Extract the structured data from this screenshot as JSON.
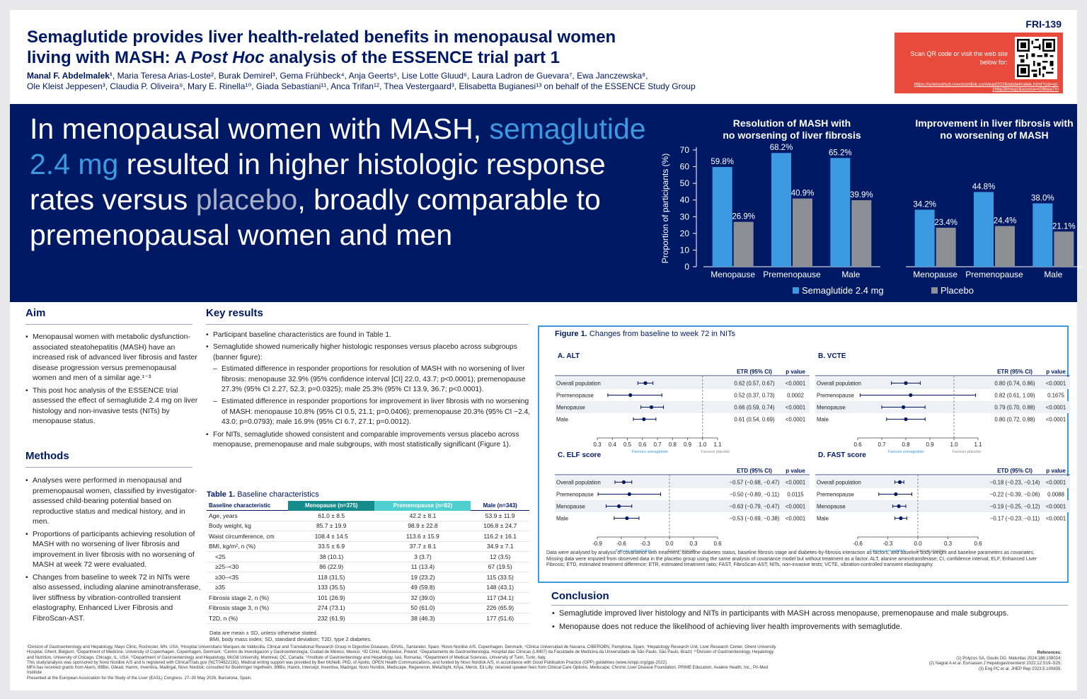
{
  "poster_id": "FRI-139",
  "title": {
    "line1": "Semaglutide provides liver health-related benefits in menopausal women",
    "line2_pre": "living with MASH: A ",
    "line2_italic": "Post Hoc",
    "line2_post": " analysis of the ESSENCE trial part 1"
  },
  "authors": {
    "line1_first": "Manal F. Abdelmalek¹",
    "line1_rest": ", Maria Teresa Arias-Loste², Burak Demirel³, Gema Frühbeck⁴, Anja Geerts⁵, Lise Lotte Gluud⁶, Laura Ladron de Guevara⁷, Ewa Janczewska⁸,",
    "line2": "Ole Kleist Jeppesen³, Claudia P. Oliveira⁹, Mary E. Rinella¹⁰, Giada Sebastiani¹¹, Anca Trifan¹², Thea Vestergaard³, Elisabetta Bugianesi¹³ on behalf of the ESSENCE Study Group"
  },
  "qr": {
    "text": "Scan QR code or visit the web site below for:",
    "link": "https://sciencehub.novonordisk.com/easl2026/abdelmalek.html?cid=qr-zh6p28megz&source=t26bea7m"
  },
  "banner": {
    "part1": "In menopausal women with MASH, ",
    "part2": "semaglutide 2.4 mg",
    "part3": " resulted in higher histologic response rates versus ",
    "part4": "placebo",
    "part5": ", broadly comparable to premenopausal women and men"
  },
  "chart_data": {
    "type": "bar",
    "ylabel": "Proportion of participants (%)",
    "ylim": [
      0,
      70
    ],
    "yticks": [
      0,
      10,
      20,
      30,
      40,
      50,
      60,
      70
    ],
    "legend_placement": "bottom",
    "colors": {
      "semaglutide": "#3b9ae1",
      "placebo": "#8c8f96"
    },
    "legend": [
      "Semaglutide 2.4 mg",
      "Placebo"
    ],
    "panels": [
      {
        "title": [
          "Resolution of MASH with",
          "no worsening of liver fibrosis"
        ],
        "categories": [
          "Menopause",
          "Premenopause",
          "Male"
        ],
        "series": [
          {
            "name": "Semaglutide 2.4 mg",
            "values": [
              59.8,
              68.2,
              65.2
            ]
          },
          {
            "name": "Placebo",
            "values": [
              26.9,
              40.9,
              39.9
            ]
          }
        ],
        "labels": [
          [
            "59.8%",
            "68.2%",
            "65.2%"
          ],
          [
            "26.9%",
            "40.9%",
            "39.9%"
          ]
        ]
      },
      {
        "title": [
          "Improvement in liver fibrosis with",
          "no worsening of MASH"
        ],
        "categories": [
          "Menopause",
          "Premenopause",
          "Male"
        ],
        "series": [
          {
            "name": "Semaglutide 2.4 mg",
            "values": [
              34.2,
              44.8,
              38.0
            ]
          },
          {
            "name": "Placebo",
            "values": [
              23.4,
              24.4,
              21.1
            ]
          }
        ],
        "labels": [
          [
            "34.2%",
            "44.8%",
            "38.0%"
          ],
          [
            "23.4%",
            "24.4%",
            "21.1%"
          ]
        ]
      }
    ]
  },
  "aim": {
    "heading": "Aim",
    "bullets": [
      "Menopausal women with metabolic dysfunction-associated steatohepatitis (MASH) have an increased risk of advanced liver fibrosis and faster disease progression versus premenopausal women and men of a similar age.¹⁻³",
      "This post hoc analysis of the ESSENCE trial assessed the effect of semaglutide 2.4 mg on liver histology and non-invasive tests (NITs) by menopause status."
    ]
  },
  "methods": {
    "heading": "Methods",
    "bullets": [
      "Analyses were performed in menopausal and premenopausal women, classified by investigator-assessed child-bearing potential based on reproductive status and medical history, and in men.",
      "Proportions of participants achieving resolution of MASH with no worsening of liver fibrosis and improvement in liver fibrosis with no worsening of MASH at week 72 were evaluated.",
      "Changes from baseline to week 72 in NITs were also assessed, including alanine aminotransferase, liver stiffness by vibration-controlled transient elastography, Enhanced Liver Fibrosis and FibroScan-AST."
    ]
  },
  "key_results": {
    "heading": "Key results",
    "b1": "Participant baseline characteristics are found in Table 1.",
    "b2": "Semaglutide showed numerically higher histologic responses versus placebo across subgroups (banner figure):",
    "sub1": "Estimated difference in responder proportions for resolution of MASH with no worsening of liver fibrosis: menopause 32.9% (95% confidence interval [CI] 22.0, 43.7; p<0.0001); premenopause 27.3% (95% CI 2.27, 52.3; p=0.0325); male 25.3% (95% CI 13.9, 36.7; p<0.0001).",
    "sub2": "Estimated difference in responder proportions for improvement in liver fibrosis with no worsening of MASH: menopause 10.8% (95% CI 0.5, 21.1; p=0.0406); premenopause 20.3% (95% CI −2.4, 43.0; p=0.0793); male 16.9% (95% CI 6.7, 27.1; p=0.0012).",
    "b3": "For NITs, semaglutide showed consistent and comparable improvements versus placebo across menopause, premenopause and male subgroups, with most statistically significant (Figure 1)."
  },
  "table1": {
    "caption_bold": "Table 1.",
    "caption_rest": " Baseline characteristics",
    "headers": [
      "Baseline characteristic",
      "Menopause (n=375)",
      "Premenopause (n=82)",
      "Male (n=343)"
    ],
    "rows": [
      [
        "Age, years",
        "61.0 ± 8.5",
        "42.2 ± 8.1",
        "53.9 ± 11.9"
      ],
      [
        "Body weight, kg",
        "85.7 ± 19.9",
        "98.9 ± 22.8",
        "106.8 ± 24.7"
      ],
      [
        "Waist circumference, cm",
        "108.4 ± 14.5",
        "113.6 ± 15.9",
        "116.2 ± 16.1"
      ],
      [
        "BMI, kg/m², n (%)",
        "33.5 ± 6.9",
        "37.7 ± 8.1",
        "34.9 ± 7.1"
      ],
      [
        "<25",
        "38 (10.1)",
        "3 (3.7)",
        "12 (3.5)"
      ],
      [
        "≥25–<30",
        "86 (22.9)",
        "11 (13.4)",
        "67 (19.5)"
      ],
      [
        "≥30–<35",
        "118 (31.5)",
        "19 (23.2)",
        "115 (33.5)"
      ],
      [
        "≥35",
        "133 (35.5)",
        "49 (59.8)",
        "148 (43.1)"
      ],
      [
        "Fibrosis stage 2, n (%)",
        "101 (26.9)",
        "32 (39.0)",
        "117 (34.1)"
      ],
      [
        "Fibrosis stage 3, n (%)",
        "274 (73.1)",
        "50 (61.0)",
        "226 (65.9)"
      ],
      [
        "T2D, n (%)",
        "232 (61.9)",
        "38 (46.3)",
        "177 (51.6)"
      ]
    ],
    "indented_rows": [
      4,
      5,
      6,
      7
    ],
    "note1": "Data are mean ± SD, unless otherwise stated.",
    "note2": "BMI, body mass index; SD, standard deviation; T2D, type 2 diabetes."
  },
  "figure1": {
    "title_bold": "Figure 1.",
    "title_rest": " Changes from baseline to week 72 in NITs",
    "row_labels": [
      "Overall population",
      "Premenopause",
      "Menopause",
      "Male"
    ],
    "panels": [
      {
        "title": "A. ALT",
        "col_head": "ETR (95% CI)",
        "pval_head": "p value",
        "ref": 1.0,
        "axis": [
          0.3,
          1.1
        ],
        "ticks": [
          "0.3",
          "0.4",
          "0.5",
          "0.6",
          "0.7",
          "0.8",
          "0.9",
          "1.0",
          "1.1"
        ],
        "est": [
          0.62,
          0.52,
          0.66,
          0.61
        ],
        "lo": [
          0.57,
          0.37,
          0.59,
          0.54
        ],
        "hi": [
          0.67,
          0.73,
          0.74,
          0.69
        ],
        "ci_text": [
          "0.62 (0.57, 0.67)",
          "0.52 (0.37, 0.73)",
          "0.66 (0.59, 0.74)",
          "0.61 (0.54, 0.69)"
        ],
        "p": [
          "<0.0001",
          "0.0002",
          "<0.0001",
          "<0.0001"
        ],
        "favours_left": "Favours semaglutide",
        "favours_right": "Favours placebo"
      },
      {
        "title": "B. VCTE",
        "col_head": "ETR (95% CI)",
        "pval_head": "p value",
        "ref": 1.0,
        "axis": [
          0.6,
          1.1
        ],
        "ticks": [
          "0.6",
          "0.7",
          "0.8",
          "0.9",
          "1.0",
          "1.1"
        ],
        "est": [
          0.8,
          0.82,
          0.79,
          0.8
        ],
        "lo": [
          0.74,
          0.61,
          0.7,
          0.72
        ],
        "hi": [
          0.86,
          1.09,
          0.88,
          0.88
        ],
        "ci_text": [
          "0.80 (0.74, 0.86)",
          "0.82 (0.61, 1.09)",
          "0.79 (0.70, 0.88)",
          "0.80 (0.72, 0.88)"
        ],
        "p": [
          "<0.0001",
          "0.1675",
          "<0.0001",
          "<0.0001"
        ],
        "favours_left": "Favours semaglutide",
        "favours_right": "Favours placebo"
      },
      {
        "title": "C. ELF score",
        "col_head": "ETD (95% CI)",
        "pval_head": "p value",
        "ref": 0.0,
        "axis": [
          -0.9,
          0.6
        ],
        "ticks": [
          "-0.9",
          "-0.6",
          "-0.3",
          "0.0",
          "0.3",
          "0.6"
        ],
        "est": [
          -0.57,
          -0.5,
          -0.63,
          -0.53
        ],
        "lo": [
          -0.68,
          -0.89,
          -0.79,
          -0.69
        ],
        "hi": [
          -0.47,
          -0.11,
          -0.47,
          -0.38
        ],
        "ci_text": [
          "−0.57 (−0.68, −0.47)",
          "−0.50 (−0.89, −0.11)",
          "−0.63 (−0.79, −0.47)",
          "−0.53 (−0.69, −0.38)"
        ],
        "p": [
          "<0.0001",
          "0.0115",
          "<0.0001",
          "<0.0001"
        ],
        "favours_left": "Favours semaglutide",
        "favours_right": "Favours placebo"
      },
      {
        "title": "D. FAST score",
        "col_head": "ETD (95% CI)",
        "pval_head": "p value",
        "ref": 0.0,
        "axis": [
          -0.6,
          0.6
        ],
        "ticks": [
          "-0.6",
          "-0.3",
          "0.0",
          "0.3",
          "0.6"
        ],
        "est": [
          -0.18,
          -0.22,
          -0.19,
          -0.17
        ],
        "lo": [
          -0.23,
          -0.39,
          -0.25,
          -0.23
        ],
        "hi": [
          -0.14,
          -0.06,
          -0.12,
          -0.11
        ],
        "ci_text": [
          "−0.18 (−0.23, −0.14)",
          "−0.22 (−0.39, −0.06)",
          "−0.19 (−0.25, −0.12)",
          "−0.17 (−0.23, −0.11)"
        ],
        "p": [
          "<0.0001",
          "0.0088",
          "<0.0001",
          "<0.0001"
        ],
        "favours_left": "Favours semaglutide",
        "favours_right": "Favours placebo"
      }
    ],
    "note": "Data were analysed by analysis of covariance with treatment, baseline diabetes status, baseline fibrosis stage and diabetes-by-fibrosis interaction as factors, and baseline body weight and baseline parameters as covariates. Missing data were imputed from observed data in the placebo group using the same analysis of covariance model but without treatment as a factor. ALT, alanine aminotransferase; CI, confidence interval; ELF, Enhanced Liver Fibrosis; ETD, estimated treatment difference; ETR, estimated treatment ratio; FAST, FibroScan-AST; NITs, non-invasive tests; VCTE, vibration-controlled transient elastography."
  },
  "conclusion": {
    "heading": "Conclusion",
    "bullets": [
      "Semaglutide improved liver histology and NITs in participants with MASH across menopause, premenopause and male subgroups.",
      "Menopause does not reduce the likelihood of achieving liver health improvements with semaglutide."
    ]
  },
  "footer": {
    "affiliations": "¹Division of Gastroenterology and Hepatology, Mayo Clinic, Rochester, MN, USA; ²Hospital Universitario Marques de Valdecilla, Clinical and Translational Research Group in Digestive Diseases, IDIVAL, Santander, Spain; ³Novo Nordisk A/S, Copenhagen, Denmark; ⁴Clinica Universidad de Navarra, CIBEROBN, Pamplona, Spain; ⁵Hepatology Research Unit, Liver Research Center, Ghent University Hospital, Ghent, Belgium; ⁶Department of Medicine, University of Copenhagen, Copenhagen, Denmark; ⁷Centro de Investigación y Gastroenterología, Ciudad de México, Mexico; ⁸ID Clinic, Mysłowice, Poland; ⁹Departamento de Gastroenterologia, Hospital das Clínicas (LIM07) da Faculdade de Medicina da Universidade de São Paulo, São Paulo, Brazil; ¹⁰Division of Gastroenterology, Hepatology and Nutrition, University of Chicago, Chicago, IL, USA; ¹¹Department of Gastroenterology and Hepatology, McGill University, Montreal, QC, Canada; ¹²Institute of Gastroenterology and Hepatology, Iasi, Romania; ¹³Department of Medical Sciences, University of Turin, Turin, Italy.",
    "funding": "This study/analysis was sponsored by Novo Nordisk A/S and is registered with ClinicalTrials.gov (NCT04822181). Medical writing support was provided by Ben McNeill, PhD, of Apollo, OPEN Health Communications, and funded by Novo Nordisk A/S, in accordance with Good Publication Practice (GPP) guidelines (www.ismpp.org/gpp-2022).",
    "disclosure": "MFA has received grants from Akero, 89Bio, Gilead, Hanmi, Inventiva, Madrigal, Novo Nordisk; consulted for Boehringer Ingelheim, 89Bio, Hanmi, Intercept, Inventiva, Madrigal, Novo Nordisk, Medscape, Regeneron, MetaSight, Kriya, Merck, Eli Lilly; received speaker fees from Clinical Care Options; Medscape; Chronic Liver Disease Foundation, PRIME Education, Avalere Health, Inc., Pri-Med Institute",
    "presented": "Presented at the European Association for the Study of the Liver (EASL) Congress, 27–30 May 2026, Barcelona, Spain."
  },
  "references": {
    "heading": "References:",
    "items": [
      "(1) Polyzos SA, Goulis DG. Maturitas 2024;186:108024;",
      "(2) Nagral A et al. Euroasian J Hepatogastroenterol 2022;12:S19–S25;",
      "(3) Eng PC et al. JHEP Rep 2023;5:100835."
    ]
  }
}
